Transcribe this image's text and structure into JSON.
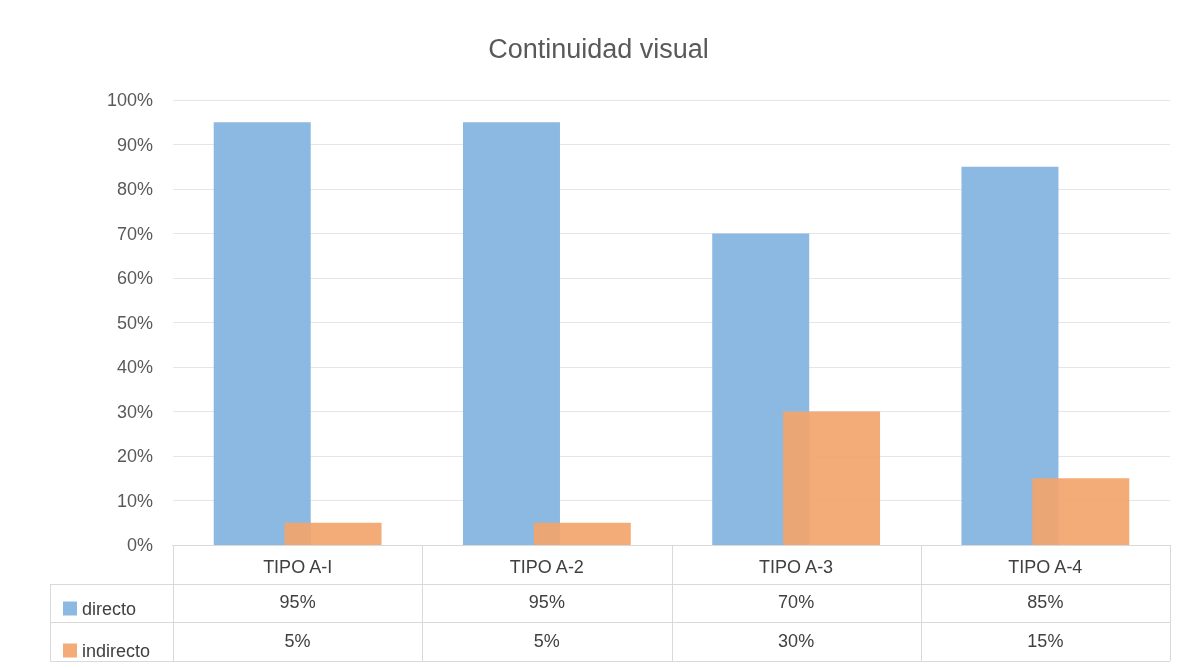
{
  "chart_data": {
    "type": "bar",
    "title": "Continuidad visual",
    "categories": [
      "TIPO A-I",
      "TIPO A-2",
      "TIPO A-3",
      "TIPO A-4"
    ],
    "series": [
      {
        "name": "directo",
        "color": "#8cb9e2",
        "values": [
          95,
          95,
          70,
          85
        ],
        "value_labels": [
          "95%",
          "95%",
          "70%",
          "85%"
        ]
      },
      {
        "name": "indirecto",
        "color": "#f2a46b",
        "values": [
          5,
          5,
          30,
          15
        ],
        "value_labels": [
          "5%",
          "5%",
          "30%",
          "15%"
        ]
      }
    ],
    "ylim": [
      0,
      100
    ],
    "yticks": [
      {
        "value": 0,
        "label": "0%"
      },
      {
        "value": 10,
        "label": "10%"
      },
      {
        "value": 20,
        "label": "20%"
      },
      {
        "value": 30,
        "label": "30%"
      },
      {
        "value": 40,
        "label": "40%"
      },
      {
        "value": 50,
        "label": "50%"
      },
      {
        "value": 60,
        "label": "60%"
      },
      {
        "value": 70,
        "label": "70%"
      },
      {
        "value": 80,
        "label": "80%"
      },
      {
        "value": 90,
        "label": "90%"
      },
      {
        "value": 100,
        "label": "100%"
      }
    ],
    "grid": "y",
    "legend": "bottom"
  }
}
